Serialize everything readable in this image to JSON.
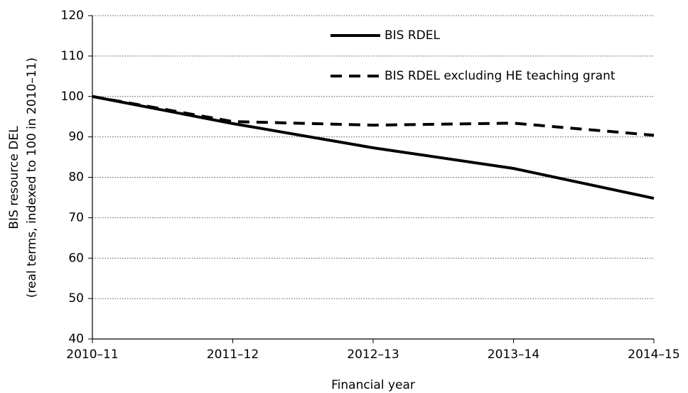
{
  "chart_data": {
    "type": "line",
    "y_label": [
      "BIS resource DEL",
      "(real terms, indexed to 100 in 2010–11)"
    ],
    "x_label": "Financial year",
    "categories": [
      "2010–11",
      "2011–12",
      "2012–13",
      "2013–14",
      "2014–15"
    ],
    "series": [
      {
        "name": "BIS RDEL",
        "color": "#000000",
        "dashed": false,
        "values": [
          100,
          93.3,
          87.3,
          82.2,
          74.8
        ]
      },
      {
        "name": "BIS RDEL excluding HE teaching grant",
        "color": "#000000",
        "dashed": true,
        "values": [
          100,
          93.8,
          92.9,
          93.4,
          90.4
        ]
      }
    ],
    "ylim": [
      40,
      120
    ],
    "yticks": [
      40,
      50,
      60,
      70,
      80,
      90,
      100,
      110,
      120
    ],
    "grid": true
  }
}
